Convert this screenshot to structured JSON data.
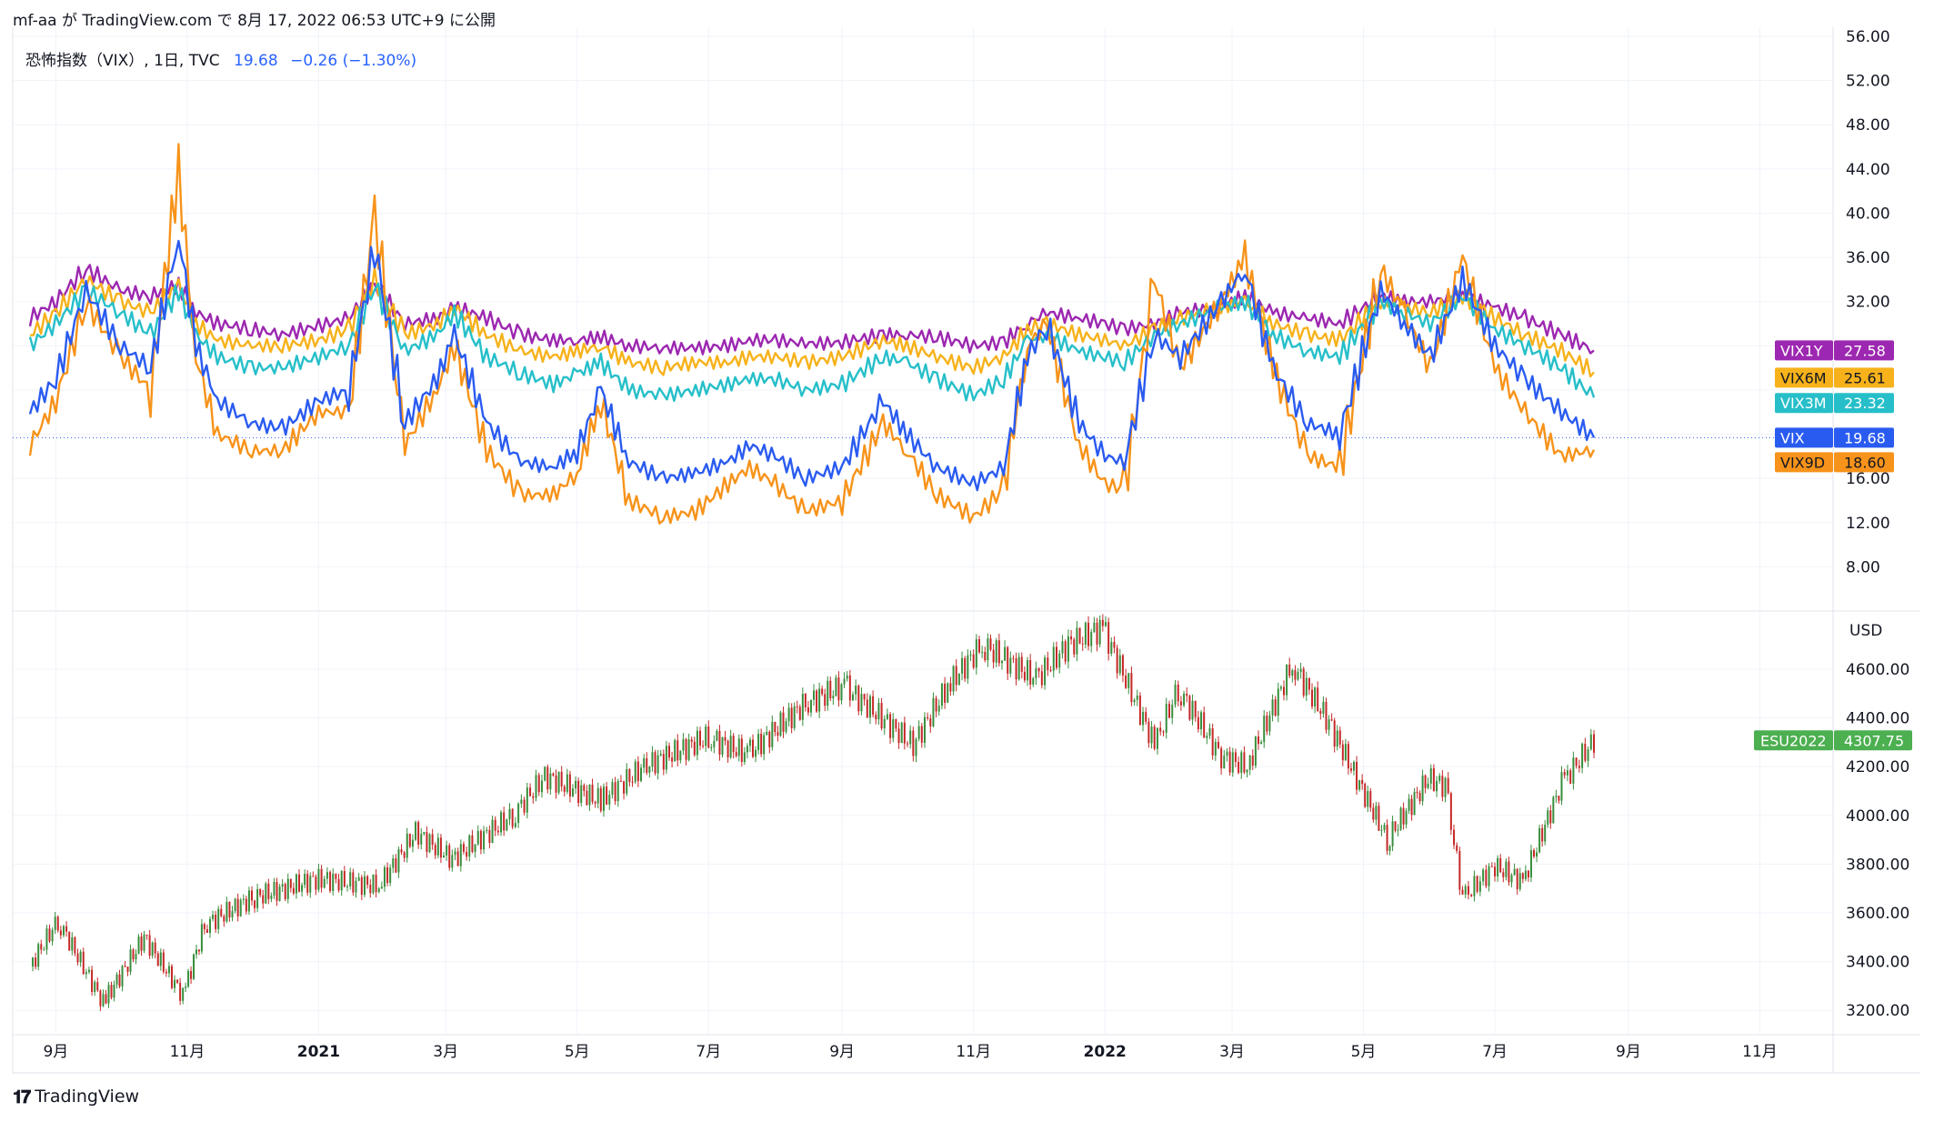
{
  "header": {
    "publisher": "mf-aa が TradingView.com で 8月 17, 2022 06:53 UTC+9 に公開"
  },
  "legend": {
    "symbol": "恐怖指数（VIX）, 1日, TVC",
    "price": "19.68",
    "change": "−0.26 (−1.30%)"
  },
  "footer": {
    "brand": "TradingView"
  },
  "colors": {
    "vix1y": "#9c27b0",
    "vix6m": "#f7b21b",
    "vix3m": "#26bfc9",
    "vix": "#2a5bf0",
    "vix9d": "#f7931a",
    "up": "#26a69a",
    "down": "#ef5350",
    "candle_up": "#388e3c",
    "candle_down": "#c62828"
  },
  "chart_data": [
    {
      "type": "line",
      "x": [
        "2020-08-20",
        "2020-09-01",
        "2020-09-15",
        "2020-10-01",
        "2020-10-15",
        "2020-10-28",
        "2020-11-05",
        "2020-11-15",
        "2020-12-01",
        "2020-12-15",
        "2021-01-01",
        "2021-01-15",
        "2021-01-27",
        "2021-02-10",
        "2021-02-25",
        "2021-03-05",
        "2021-03-20",
        "2021-04-05",
        "2021-04-20",
        "2021-05-01",
        "2021-05-12",
        "2021-05-25",
        "2021-06-10",
        "2021-06-25",
        "2021-07-10",
        "2021-07-20",
        "2021-08-01",
        "2021-08-15",
        "2021-09-01",
        "2021-09-20",
        "2021-10-01",
        "2021-10-15",
        "2021-11-01",
        "2021-11-15",
        "2021-11-26",
        "2021-12-05",
        "2021-12-20",
        "2022-01-01",
        "2022-01-10",
        "2022-01-24",
        "2022-02-05",
        "2022-02-24",
        "2022-03-07",
        "2022-03-20",
        "2022-04-05",
        "2022-04-20",
        "2022-05-09",
        "2022-05-20",
        "2022-06-01",
        "2022-06-16",
        "2022-07-01",
        "2022-07-15",
        "2022-08-01",
        "2022-08-16"
      ],
      "series": [
        {
          "name": "VIX1Y",
          "last": "27.58",
          "values": [
            30.5,
            32.0,
            35.0,
            33.0,
            32.5,
            33.5,
            31.0,
            30.0,
            29.5,
            29.0,
            29.8,
            30.5,
            33.5,
            30.0,
            30.5,
            31.5,
            30.5,
            29.0,
            28.5,
            28.5,
            28.8,
            28.0,
            27.8,
            27.8,
            28.0,
            28.5,
            28.5,
            28.2,
            28.3,
            29.0,
            29.0,
            28.8,
            28.0,
            28.3,
            30.0,
            31.0,
            30.5,
            30.0,
            29.5,
            30.0,
            31.0,
            31.5,
            32.5,
            31.0,
            30.5,
            30.0,
            32.5,
            32.0,
            32.0,
            32.5,
            31.5,
            30.5,
            29.0,
            27.58
          ]
        },
        {
          "name": "VIX6M",
          "last": "25.61",
          "values": [
            29.0,
            31.0,
            34.0,
            32.0,
            31.0,
            33.5,
            30.0,
            28.5,
            28.0,
            28.0,
            28.5,
            29.5,
            34.0,
            29.0,
            30.0,
            31.5,
            29.0,
            27.5,
            27.0,
            27.5,
            28.0,
            26.5,
            26.0,
            26.5,
            26.5,
            27.0,
            27.0,
            26.5,
            27.0,
            28.5,
            28.0,
            27.0,
            26.0,
            27.0,
            29.5,
            30.0,
            29.0,
            28.5,
            28.0,
            29.5,
            30.5,
            31.5,
            32.0,
            30.0,
            29.0,
            28.5,
            32.0,
            31.5,
            31.0,
            32.5,
            30.5,
            29.0,
            27.5,
            25.61
          ]
        },
        {
          "name": "VIX3M",
          "last": "23.32",
          "values": [
            28.0,
            30.0,
            33.0,
            31.0,
            29.0,
            33.0,
            29.0,
            27.0,
            26.0,
            26.0,
            27.0,
            28.0,
            33.5,
            27.5,
            29.0,
            31.0,
            27.0,
            25.5,
            24.5,
            25.5,
            26.5,
            24.0,
            23.5,
            24.0,
            24.5,
            25.0,
            25.0,
            24.0,
            24.5,
            27.0,
            26.5,
            25.0,
            23.5,
            25.0,
            28.5,
            29.0,
            27.5,
            27.0,
            26.5,
            29.0,
            30.0,
            31.5,
            32.0,
            29.0,
            27.5,
            27.0,
            32.0,
            31.0,
            30.0,
            32.5,
            29.5,
            28.0,
            26.0,
            23.32
          ]
        },
        {
          "name": "VIX",
          "last": "19.68",
          "values": [
            22.0,
            25.0,
            33.0,
            28.0,
            26.0,
            38.0,
            28.0,
            23.0,
            21.0,
            20.5,
            23.0,
            24.0,
            37.0,
            21.0,
            25.0,
            29.0,
            21.0,
            17.5,
            17.0,
            18.5,
            24.0,
            17.5,
            16.0,
            16.5,
            17.5,
            19.0,
            18.0,
            16.0,
            17.0,
            23.0,
            20.0,
            17.0,
            15.5,
            17.0,
            27.0,
            30.0,
            21.0,
            18.0,
            17.5,
            29.0,
            27.0,
            32.0,
            35.0,
            26.0,
            21.0,
            20.0,
            33.0,
            30.0,
            27.0,
            34.0,
            28.0,
            25.0,
            22.0,
            19.68
          ]
        },
        {
          "name": "VIX9D",
          "last": "18.60",
          "values": [
            19.0,
            23.0,
            32.0,
            27.0,
            24.0,
            44.0,
            27.0,
            20.0,
            18.5,
            18.5,
            22.0,
            22.0,
            40.0,
            19.0,
            24.0,
            28.0,
            18.5,
            14.5,
            14.5,
            16.5,
            23.0,
            14.0,
            12.5,
            13.0,
            15.5,
            17.0,
            15.5,
            13.0,
            14.0,
            21.0,
            18.5,
            14.5,
            12.5,
            15.0,
            28.0,
            30.0,
            19.0,
            15.5,
            15.0,
            34.0,
            26.0,
            32.0,
            36.0,
            26.0,
            18.0,
            17.0,
            35.0,
            31.0,
            26.0,
            36.0,
            26.0,
            22.0,
            18.0,
            18.6
          ]
        }
      ],
      "ylim": [
        4,
        56
      ],
      "yticks": [
        "56.00",
        "52.00",
        "48.00",
        "44.00",
        "40.00",
        "36.00",
        "32.00",
        "28.00",
        "24.00",
        "20.00",
        "16.00",
        "12.00",
        "8.00"
      ]
    },
    {
      "type": "candlestick",
      "series_name": "ESU2022",
      "last": "4307.75",
      "currency": "USD",
      "x": [
        "2020-08-20",
        "2020-09-02",
        "2020-09-23",
        "2020-10-12",
        "2020-10-30",
        "2020-11-09",
        "2020-12-01",
        "2021-01-01",
        "2021-01-29",
        "2021-02-15",
        "2021-03-04",
        "2021-04-01",
        "2021-04-16",
        "2021-05-12",
        "2021-06-01",
        "2021-07-01",
        "2021-07-19",
        "2021-08-15",
        "2021-09-02",
        "2021-10-04",
        "2021-10-20",
        "2021-11-05",
        "2021-11-30",
        "2021-12-15",
        "2021-12-31",
        "2022-01-24",
        "2022-02-04",
        "2022-02-24",
        "2022-03-08",
        "2022-03-29",
        "2022-04-15",
        "2022-05-12",
        "2022-05-31",
        "2022-06-08",
        "2022-06-16",
        "2022-07-01",
        "2022-07-14",
        "2022-08-01",
        "2022-08-16"
      ],
      "values": [
        3380,
        3570,
        3230,
        3500,
        3260,
        3550,
        3660,
        3740,
        3710,
        3930,
        3820,
        4000,
        4160,
        4060,
        4200,
        4320,
        4250,
        4460,
        4530,
        4290,
        4530,
        4700,
        4560,
        4700,
        4770,
        4290,
        4520,
        4240,
        4200,
        4620,
        4380,
        3900,
        4150,
        4120,
        3660,
        3790,
        3730,
        4130,
        4307.75
      ],
      "ylim": [
        3100,
        4820
      ],
      "yticks": [
        "4600.00",
        "4400.00",
        "4200.00",
        "4000.00",
        "3800.00",
        "3600.00",
        "3400.00",
        "3200.00"
      ]
    }
  ],
  "xaxis": {
    "labels": [
      "9月",
      "11月",
      "2021",
      "3月",
      "5月",
      "7月",
      "9月",
      "11月",
      "2022",
      "3月",
      "5月",
      "7月",
      "9月",
      "11月"
    ],
    "dates": [
      "2020-09-01",
      "2020-11-01",
      "2021-01-01",
      "2021-03-01",
      "2021-05-01",
      "2021-07-01",
      "2021-09-01",
      "2021-11-01",
      "2022-01-01",
      "2022-03-01",
      "2022-05-01",
      "2022-07-01",
      "2022-09-01",
      "2022-11-01"
    ],
    "bold": [
      false,
      false,
      true,
      false,
      false,
      false,
      false,
      false,
      true,
      false,
      false,
      false,
      false,
      false
    ]
  }
}
